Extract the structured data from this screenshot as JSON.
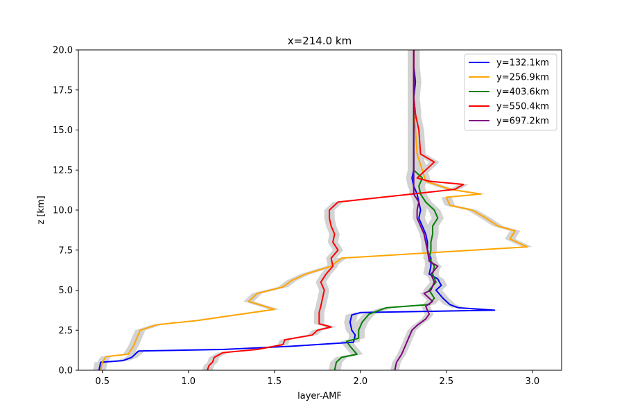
{
  "chart_data": {
    "type": "line",
    "title": "x=214.0 km",
    "xlabel": "layer-AMF",
    "ylabel": "z [km]",
    "xlim": [
      0.36,
      3.17
    ],
    "ylim": [
      0,
      20
    ],
    "xticks": [
      0.5,
      1.0,
      1.5,
      2.0,
      2.5,
      3.0
    ],
    "xtick_labels": [
      "0.5",
      "1.0",
      "1.5",
      "2.0",
      "2.5",
      "3.0"
    ],
    "yticks": [
      0,
      2.5,
      5,
      7.5,
      10,
      12.5,
      15,
      17.5,
      20
    ],
    "ytick_labels": [
      "0.0",
      "2.5",
      "5.0",
      "7.5",
      "10.0",
      "12.5",
      "15.0",
      "17.5",
      "20.0"
    ],
    "grid": false,
    "legend_position": "top-right",
    "uncertainty_color": "#d3d3d3",
    "series": [
      {
        "name": "y=132.1km",
        "color": "#0000ff",
        "band": 0.035,
        "points": [
          [
            0.48,
            0
          ],
          [
            0.49,
            0.5
          ],
          [
            0.62,
            0.6
          ],
          [
            0.67,
            0.8
          ],
          [
            0.71,
            1.2
          ],
          [
            1.2,
            1.3
          ],
          [
            1.6,
            1.5
          ],
          [
            1.96,
            1.75
          ],
          [
            1.97,
            2.2
          ],
          [
            1.95,
            2.5
          ],
          [
            1.94,
            3.0
          ],
          [
            1.95,
            3.45
          ],
          [
            2.0,
            3.6
          ],
          [
            2.78,
            3.75
          ],
          [
            2.57,
            3.9
          ],
          [
            2.52,
            4.1
          ],
          [
            2.48,
            4.5
          ],
          [
            2.44,
            5.0
          ],
          [
            2.47,
            5.3
          ],
          [
            2.45,
            5.7
          ],
          [
            2.4,
            6.0
          ],
          [
            2.41,
            6.5
          ],
          [
            2.41,
            7.0
          ],
          [
            2.39,
            7.5
          ],
          [
            2.39,
            8.0
          ],
          [
            2.38,
            8.5
          ],
          [
            2.36,
            9.0
          ],
          [
            2.34,
            9.5
          ],
          [
            2.35,
            10.0
          ],
          [
            2.34,
            10.5
          ],
          [
            2.33,
            11.0
          ],
          [
            2.31,
            11.5
          ],
          [
            2.3,
            12.0
          ],
          [
            2.31,
            12.5
          ],
          [
            2.31,
            13.0
          ],
          [
            2.31,
            14.0
          ],
          [
            2.31,
            15.0
          ],
          [
            2.32,
            16.0
          ],
          [
            2.31,
            17.0
          ],
          [
            2.32,
            18.0
          ],
          [
            2.31,
            19.0
          ],
          [
            2.31,
            20.0
          ]
        ]
      },
      {
        "name": "y=256.9km",
        "color": "#ffa500",
        "band": 0.03,
        "points": [
          [
            0.49,
            0
          ],
          [
            0.5,
            0.5
          ],
          [
            0.52,
            0.85
          ],
          [
            0.65,
            1.0
          ],
          [
            0.68,
            1.5
          ],
          [
            0.7,
            2.0
          ],
          [
            0.72,
            2.5
          ],
          [
            0.82,
            2.85
          ],
          [
            1.05,
            3.1
          ],
          [
            1.24,
            3.4
          ],
          [
            1.5,
            3.8
          ],
          [
            1.35,
            4.3
          ],
          [
            1.4,
            4.8
          ],
          [
            1.55,
            5.2
          ],
          [
            1.6,
            5.6
          ],
          [
            1.68,
            6.0
          ],
          [
            1.83,
            6.5
          ],
          [
            1.89,
            7.0
          ],
          [
            2.35,
            7.3
          ],
          [
            2.97,
            7.7
          ],
          [
            2.87,
            8.2
          ],
          [
            2.9,
            8.7
          ],
          [
            2.8,
            9.0
          ],
          [
            2.73,
            9.5
          ],
          [
            2.65,
            10.0
          ],
          [
            2.52,
            10.3
          ],
          [
            2.5,
            10.8
          ],
          [
            2.7,
            11.0
          ],
          [
            2.52,
            11.3
          ],
          [
            2.38,
            11.8
          ],
          [
            2.36,
            12.5
          ],
          [
            2.33,
            13.5
          ],
          [
            2.32,
            15.0
          ],
          [
            2.31,
            17.0
          ],
          [
            2.31,
            20.0
          ]
        ]
      },
      {
        "name": "y=403.6km",
        "color": "#008000",
        "band": 0.035,
        "points": [
          [
            1.85,
            0
          ],
          [
            1.86,
            0.5
          ],
          [
            1.89,
            0.8
          ],
          [
            1.98,
            1.0
          ],
          [
            1.94,
            1.5
          ],
          [
            1.92,
            1.8
          ],
          [
            1.99,
            2.0
          ],
          [
            1.99,
            2.5
          ],
          [
            2.01,
            3.0
          ],
          [
            2.05,
            3.5
          ],
          [
            2.15,
            3.9
          ],
          [
            2.4,
            4.1
          ],
          [
            2.43,
            4.5
          ],
          [
            2.4,
            5.0
          ],
          [
            2.44,
            5.5
          ],
          [
            2.42,
            6.0
          ],
          [
            2.43,
            6.5
          ],
          [
            2.4,
            7.0
          ],
          [
            2.41,
            7.5
          ],
          [
            2.41,
            8.0
          ],
          [
            2.42,
            8.5
          ],
          [
            2.42,
            9.0
          ],
          [
            2.45,
            9.5
          ],
          [
            2.43,
            10.0
          ],
          [
            2.38,
            10.5
          ],
          [
            2.35,
            11.0
          ],
          [
            2.34,
            11.5
          ],
          [
            2.36,
            12.0
          ],
          [
            2.31,
            12.5
          ],
          [
            2.31,
            13.0
          ],
          [
            2.31,
            15.0
          ],
          [
            2.31,
            17.0
          ],
          [
            2.31,
            20.0
          ]
        ]
      },
      {
        "name": "y=550.4km",
        "color": "#ff0000",
        "band": 0.03,
        "points": [
          [
            1.11,
            0
          ],
          [
            1.12,
            0.3
          ],
          [
            1.14,
            0.5
          ],
          [
            1.15,
            0.8
          ],
          [
            1.2,
            1.1
          ],
          [
            1.4,
            1.3
          ],
          [
            1.55,
            1.6
          ],
          [
            1.56,
            1.9
          ],
          [
            1.72,
            2.2
          ],
          [
            1.75,
            2.5
          ],
          [
            1.83,
            2.7
          ],
          [
            1.76,
            2.9
          ],
          [
            1.76,
            3.2
          ],
          [
            1.76,
            3.6
          ],
          [
            1.77,
            4.0
          ],
          [
            1.78,
            4.5
          ],
          [
            1.79,
            5.0
          ],
          [
            1.77,
            5.5
          ],
          [
            1.8,
            6.0
          ],
          [
            1.84,
            6.5
          ],
          [
            1.83,
            7.0
          ],
          [
            1.87,
            7.5
          ],
          [
            1.84,
            8.0
          ],
          [
            1.85,
            8.5
          ],
          [
            1.83,
            9.0
          ],
          [
            1.82,
            9.5
          ],
          [
            1.82,
            10.0
          ],
          [
            1.87,
            10.5
          ],
          [
            2.3,
            11.0
          ],
          [
            2.55,
            11.3
          ],
          [
            2.6,
            11.6
          ],
          [
            2.4,
            11.8
          ],
          [
            2.33,
            12.0
          ],
          [
            2.43,
            13.0
          ],
          [
            2.35,
            13.5
          ],
          [
            2.34,
            15.0
          ],
          [
            2.32,
            16.0
          ],
          [
            2.31,
            17.0
          ],
          [
            2.31,
            20.0
          ]
        ]
      },
      {
        "name": "y=697.2km",
        "color": "#800080",
        "band": 0.025,
        "points": [
          [
            2.2,
            0
          ],
          [
            2.21,
            0.5
          ],
          [
            2.24,
            1.0
          ],
          [
            2.26,
            1.5
          ],
          [
            2.28,
            2.0
          ],
          [
            2.3,
            2.5
          ],
          [
            2.33,
            2.8
          ],
          [
            2.38,
            3.2
          ],
          [
            2.4,
            3.5
          ],
          [
            2.38,
            4.0
          ],
          [
            2.42,
            4.3
          ],
          [
            2.37,
            4.8
          ],
          [
            2.41,
            5.0
          ],
          [
            2.43,
            5.5
          ],
          [
            2.41,
            6.0
          ],
          [
            2.45,
            6.5
          ],
          [
            2.4,
            6.8
          ],
          [
            2.39,
            7.5
          ],
          [
            2.38,
            8.0
          ],
          [
            2.37,
            8.5
          ],
          [
            2.35,
            9.0
          ],
          [
            2.33,
            9.5
          ],
          [
            2.33,
            10.0
          ],
          [
            2.34,
            10.5
          ],
          [
            2.31,
            11.0
          ],
          [
            2.31,
            11.5
          ],
          [
            2.31,
            12.0
          ],
          [
            2.31,
            13.0
          ],
          [
            2.31,
            15.0
          ],
          [
            2.31,
            17.0
          ],
          [
            2.31,
            20.0
          ]
        ]
      }
    ]
  }
}
